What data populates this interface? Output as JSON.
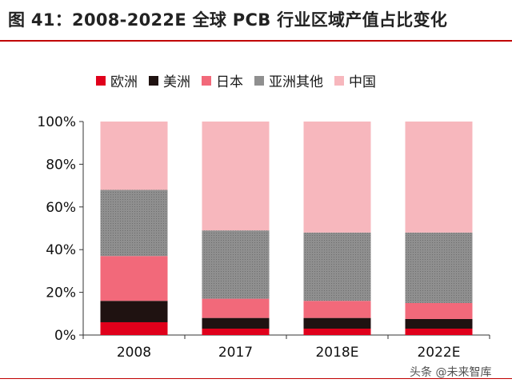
{
  "title": "图 41：2008-2022E 全球 PCB 行业区域产值占比变化",
  "watermark": "头条 @未来智库",
  "chart_data": {
    "type": "bar",
    "stacked": true,
    "categories": [
      "2008",
      "2017",
      "2018E",
      "2022E"
    ],
    "series": [
      {
        "name": "欧洲",
        "color": "#e0001b",
        "values": [
          6,
          3,
          3,
          3
        ]
      },
      {
        "name": "美洲",
        "color": "#1f1211",
        "values": [
          10,
          5,
          5,
          4.5
        ]
      },
      {
        "name": "日本",
        "color": "#f2697a",
        "values": [
          21,
          9,
          8,
          7.5
        ]
      },
      {
        "name": "亚洲其他",
        "color": "#8f8f8f",
        "values": [
          31,
          32,
          32,
          33
        ]
      },
      {
        "name": "中国",
        "color": "#f7b7bd",
        "values": [
          32,
          51,
          52,
          52
        ]
      }
    ],
    "y_ticks": [
      "0%",
      "20%",
      "40%",
      "60%",
      "80%",
      "100%"
    ],
    "ylim": [
      0,
      100
    ],
    "legend_position": "top",
    "grid": false
  }
}
